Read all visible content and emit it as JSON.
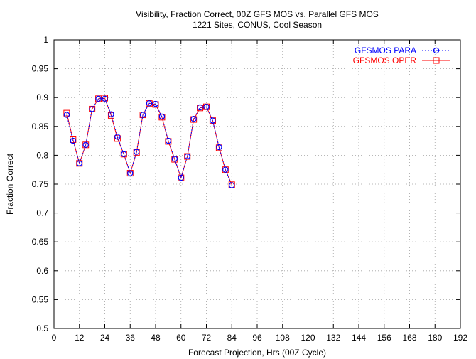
{
  "chart_data": {
    "type": "line",
    "title": "Visibility, Fraction Correct, 00Z GFS MOS vs. Parallel GFS MOS",
    "subtitle": "1221 Sites, CONUS, Cool Season",
    "xlabel": "Forecast Projection, Hrs (00Z Cycle)",
    "ylabel": "Fraction Correct",
    "xlim": [
      0,
      192
    ],
    "ylim": [
      0.5,
      1
    ],
    "xticks": [
      0,
      12,
      24,
      36,
      48,
      60,
      72,
      84,
      96,
      108,
      120,
      132,
      144,
      156,
      168,
      180,
      192
    ],
    "yticks": [
      0.5,
      0.55,
      0.6,
      0.65,
      0.7,
      0.75,
      0.8,
      0.85,
      0.9,
      0.95,
      1
    ],
    "grid": true,
    "legend_position": "top-right",
    "x": [
      6,
      9,
      12,
      15,
      18,
      21,
      24,
      27,
      30,
      33,
      36,
      39,
      42,
      45,
      48,
      51,
      54,
      57,
      60,
      63,
      66,
      69,
      72,
      75,
      78,
      81,
      84
    ],
    "series": [
      {
        "name": "GFSMOS PARA",
        "color": "#0000ff",
        "marker": "circle",
        "line_style": "dotted",
        "values": [
          0.87,
          0.825,
          0.786,
          0.818,
          0.88,
          0.898,
          0.898,
          0.871,
          0.832,
          0.802,
          0.769,
          0.806,
          0.87,
          0.89,
          0.889,
          0.867,
          0.825,
          0.794,
          0.761,
          0.798,
          0.863,
          0.883,
          0.884,
          0.86,
          0.814,
          0.775,
          0.748
        ]
      },
      {
        "name": "GFSMOS OPER",
        "color": "#ff0000",
        "marker": "square",
        "line_style": "solid",
        "values": [
          0.873,
          0.827,
          0.786,
          0.818,
          0.88,
          0.898,
          0.899,
          0.869,
          0.829,
          0.802,
          0.769,
          0.805,
          0.87,
          0.89,
          0.888,
          0.866,
          0.824,
          0.793,
          0.761,
          0.798,
          0.862,
          0.882,
          0.884,
          0.86,
          0.813,
          0.775,
          0.749
        ]
      }
    ]
  }
}
